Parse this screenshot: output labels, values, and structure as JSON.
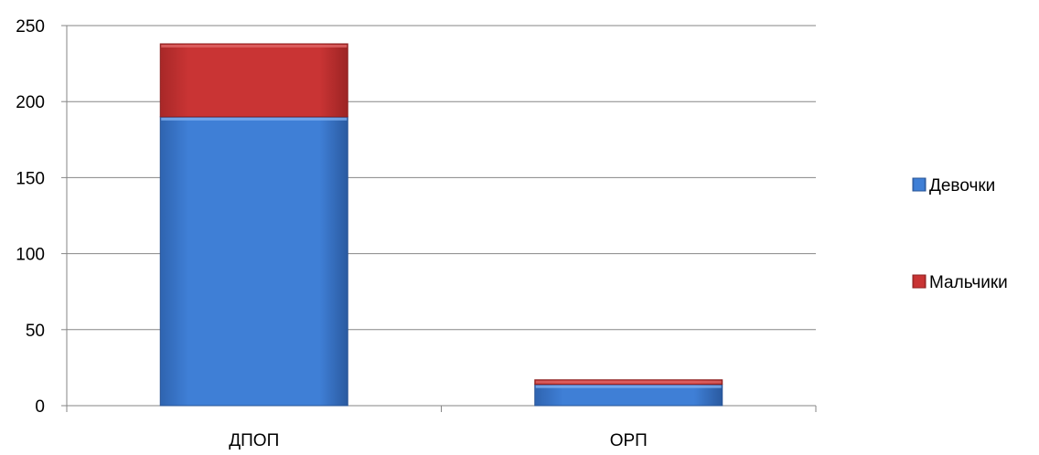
{
  "chart_data": {
    "type": "bar",
    "stacked": true,
    "categories": [
      "ДПОП",
      "ОРП"
    ],
    "series": [
      {
        "name": "Девочки",
        "values": [
          190,
          14
        ],
        "color": "#3f7fd6"
      },
      {
        "name": "Мальчики",
        "values": [
          48,
          3
        ],
        "color": "#cc3333"
      }
    ],
    "yticks": [
      0,
      50,
      100,
      150,
      200,
      250
    ],
    "ylim": [
      0,
      250
    ],
    "grid": true,
    "legend_position": "right"
  }
}
